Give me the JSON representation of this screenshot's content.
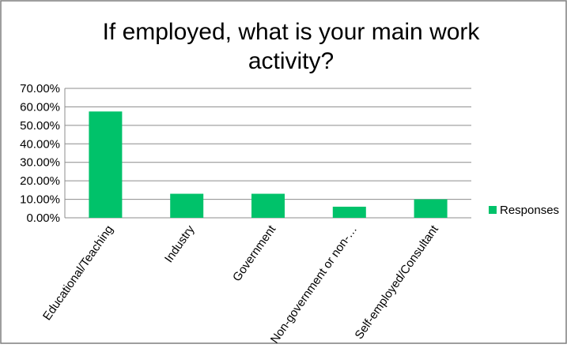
{
  "chart_data": {
    "type": "bar",
    "title_lines": [
      "If employed, what is your main work",
      "activity?"
    ],
    "categories": [
      "Educational/Teaching",
      "Industry",
      "Government",
      "Non-government or non-…",
      "Self-employed/Consultant"
    ],
    "series": [
      {
        "name": "Responses",
        "values": [
          0.575,
          0.13,
          0.13,
          0.06,
          0.1
        ]
      }
    ],
    "ylim": [
      0,
      0.7
    ],
    "yticks": [
      0,
      0.1,
      0.2,
      0.3,
      0.4,
      0.5,
      0.6,
      0.7
    ],
    "ytick_labels": [
      "0.00%",
      "10.00%",
      "20.00%",
      "30.00%",
      "40.00%",
      "50.00%",
      "60.00%",
      "70.00%"
    ],
    "grid": true,
    "legend_position": "right",
    "colors": {
      "bar": "#00c26a",
      "grid": "#8c8c8c",
      "axis": "#8c8c8c",
      "text": "#000000",
      "border": "#7f7f7f"
    }
  }
}
